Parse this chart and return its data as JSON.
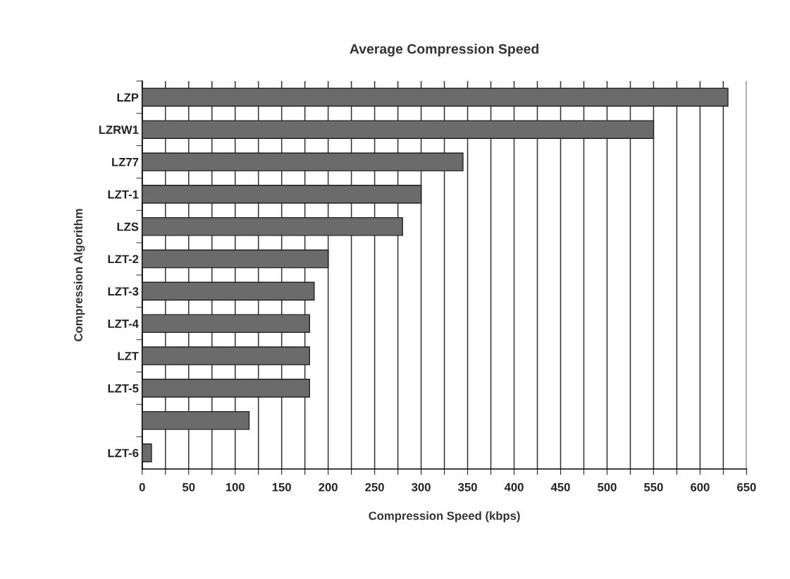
{
  "chart_data": {
    "type": "bar",
    "orientation": "horizontal",
    "title": "Average Compression Speed",
    "xlabel": "Compression Speed (kbps)",
    "ylabel": "Compression Algorithm",
    "categories": [
      "LZP",
      "LZRW1",
      "LZ77",
      "LZT-1",
      "LZS",
      "LZT-2",
      "LZT-3",
      "LZT-4",
      "LZT",
      "LZT-5",
      null,
      "LZT-6"
    ],
    "values": [
      630,
      550,
      345,
      300,
      280,
      200,
      185,
      180,
      180,
      180,
      115,
      10
    ],
    "color": "#6b6b6b",
    "xlim": [
      0,
      650
    ],
    "xticks": [
      0,
      {
        "value": 25,
        "label": null
      },
      50,
      {
        "value": 75,
        "label": null
      },
      100,
      {
        "value": 125,
        "label": null
      },
      150,
      {
        "value": 175,
        "label": null
      },
      200,
      {
        "value": 225,
        "label": null
      },
      250,
      {
        "value": 275,
        "label": null
      },
      300,
      {
        "value": 325,
        "label": null
      },
      350,
      {
        "value": 375,
        "label": null
      },
      400,
      {
        "value": 425,
        "label": null
      },
      450,
      {
        "value": 475,
        "label": null
      },
      500,
      {
        "value": 525,
        "label": null
      },
      550,
      {
        "value": 575,
        "label": null
      },
      600,
      {
        "value": 625,
        "label": null
      },
      650
    ],
    "grid": "x"
  }
}
